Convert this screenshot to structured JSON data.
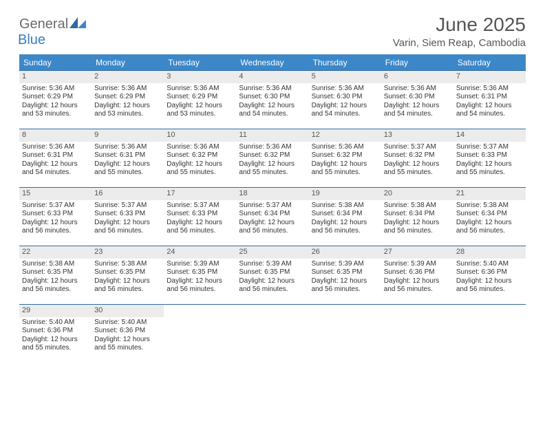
{
  "logo": {
    "general": "General",
    "blue": "Blue"
  },
  "title": "June 2025",
  "location": "Varin, Siem Reap, Cambodia",
  "colors": {
    "header_bg": "#3b87c8",
    "border": "#2f6aa0",
    "daynum_bg": "#ececec",
    "text": "#333333"
  },
  "weekdays": [
    "Sunday",
    "Monday",
    "Tuesday",
    "Wednesday",
    "Thursday",
    "Friday",
    "Saturday"
  ],
  "weeks": [
    [
      {
        "n": "1",
        "sr": "Sunrise: 5:36 AM",
        "ss": "Sunset: 6:29 PM",
        "dl": "Daylight: 12 hours and 53 minutes."
      },
      {
        "n": "2",
        "sr": "Sunrise: 5:36 AM",
        "ss": "Sunset: 6:29 PM",
        "dl": "Daylight: 12 hours and 53 minutes."
      },
      {
        "n": "3",
        "sr": "Sunrise: 5:36 AM",
        "ss": "Sunset: 6:29 PM",
        "dl": "Daylight: 12 hours and 53 minutes."
      },
      {
        "n": "4",
        "sr": "Sunrise: 5:36 AM",
        "ss": "Sunset: 6:30 PM",
        "dl": "Daylight: 12 hours and 54 minutes."
      },
      {
        "n": "5",
        "sr": "Sunrise: 5:36 AM",
        "ss": "Sunset: 6:30 PM",
        "dl": "Daylight: 12 hours and 54 minutes."
      },
      {
        "n": "6",
        "sr": "Sunrise: 5:36 AM",
        "ss": "Sunset: 6:30 PM",
        "dl": "Daylight: 12 hours and 54 minutes."
      },
      {
        "n": "7",
        "sr": "Sunrise: 5:36 AM",
        "ss": "Sunset: 6:31 PM",
        "dl": "Daylight: 12 hours and 54 minutes."
      }
    ],
    [
      {
        "n": "8",
        "sr": "Sunrise: 5:36 AM",
        "ss": "Sunset: 6:31 PM",
        "dl": "Daylight: 12 hours and 54 minutes."
      },
      {
        "n": "9",
        "sr": "Sunrise: 5:36 AM",
        "ss": "Sunset: 6:31 PM",
        "dl": "Daylight: 12 hours and 55 minutes."
      },
      {
        "n": "10",
        "sr": "Sunrise: 5:36 AM",
        "ss": "Sunset: 6:32 PM",
        "dl": "Daylight: 12 hours and 55 minutes."
      },
      {
        "n": "11",
        "sr": "Sunrise: 5:36 AM",
        "ss": "Sunset: 6:32 PM",
        "dl": "Daylight: 12 hours and 55 minutes."
      },
      {
        "n": "12",
        "sr": "Sunrise: 5:36 AM",
        "ss": "Sunset: 6:32 PM",
        "dl": "Daylight: 12 hours and 55 minutes."
      },
      {
        "n": "13",
        "sr": "Sunrise: 5:37 AM",
        "ss": "Sunset: 6:32 PM",
        "dl": "Daylight: 12 hours and 55 minutes."
      },
      {
        "n": "14",
        "sr": "Sunrise: 5:37 AM",
        "ss": "Sunset: 6:33 PM",
        "dl": "Daylight: 12 hours and 55 minutes."
      }
    ],
    [
      {
        "n": "15",
        "sr": "Sunrise: 5:37 AM",
        "ss": "Sunset: 6:33 PM",
        "dl": "Daylight: 12 hours and 56 minutes."
      },
      {
        "n": "16",
        "sr": "Sunrise: 5:37 AM",
        "ss": "Sunset: 6:33 PM",
        "dl": "Daylight: 12 hours and 56 minutes."
      },
      {
        "n": "17",
        "sr": "Sunrise: 5:37 AM",
        "ss": "Sunset: 6:33 PM",
        "dl": "Daylight: 12 hours and 56 minutes."
      },
      {
        "n": "18",
        "sr": "Sunrise: 5:37 AM",
        "ss": "Sunset: 6:34 PM",
        "dl": "Daylight: 12 hours and 56 minutes."
      },
      {
        "n": "19",
        "sr": "Sunrise: 5:38 AM",
        "ss": "Sunset: 6:34 PM",
        "dl": "Daylight: 12 hours and 56 minutes."
      },
      {
        "n": "20",
        "sr": "Sunrise: 5:38 AM",
        "ss": "Sunset: 6:34 PM",
        "dl": "Daylight: 12 hours and 56 minutes."
      },
      {
        "n": "21",
        "sr": "Sunrise: 5:38 AM",
        "ss": "Sunset: 6:34 PM",
        "dl": "Daylight: 12 hours and 56 minutes."
      }
    ],
    [
      {
        "n": "22",
        "sr": "Sunrise: 5:38 AM",
        "ss": "Sunset: 6:35 PM",
        "dl": "Daylight: 12 hours and 56 minutes."
      },
      {
        "n": "23",
        "sr": "Sunrise: 5:38 AM",
        "ss": "Sunset: 6:35 PM",
        "dl": "Daylight: 12 hours and 56 minutes."
      },
      {
        "n": "24",
        "sr": "Sunrise: 5:39 AM",
        "ss": "Sunset: 6:35 PM",
        "dl": "Daylight: 12 hours and 56 minutes."
      },
      {
        "n": "25",
        "sr": "Sunrise: 5:39 AM",
        "ss": "Sunset: 6:35 PM",
        "dl": "Daylight: 12 hours and 56 minutes."
      },
      {
        "n": "26",
        "sr": "Sunrise: 5:39 AM",
        "ss": "Sunset: 6:35 PM",
        "dl": "Daylight: 12 hours and 56 minutes."
      },
      {
        "n": "27",
        "sr": "Sunrise: 5:39 AM",
        "ss": "Sunset: 6:36 PM",
        "dl": "Daylight: 12 hours and 56 minutes."
      },
      {
        "n": "28",
        "sr": "Sunrise: 5:40 AM",
        "ss": "Sunset: 6:36 PM",
        "dl": "Daylight: 12 hours and 56 minutes."
      }
    ],
    [
      {
        "n": "29",
        "sr": "Sunrise: 5:40 AM",
        "ss": "Sunset: 6:36 PM",
        "dl": "Daylight: 12 hours and 55 minutes."
      },
      {
        "n": "30",
        "sr": "Sunrise: 5:40 AM",
        "ss": "Sunset: 6:36 PM",
        "dl": "Daylight: 12 hours and 55 minutes."
      },
      null,
      null,
      null,
      null,
      null
    ]
  ]
}
